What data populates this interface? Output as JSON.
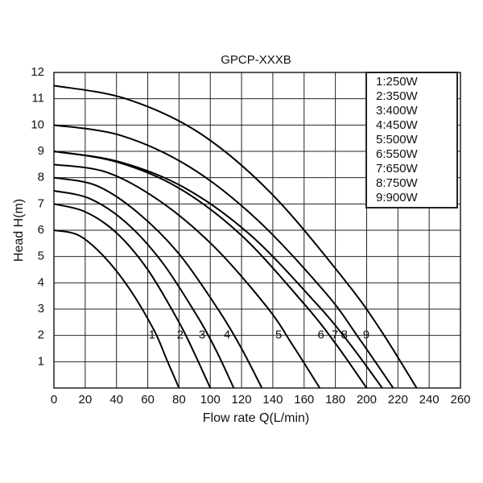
{
  "chart_data": {
    "type": "line",
    "title": "GPCP-XXXB",
    "x_label": "Flow rate Q(L/min)",
    "y_label": "Head H(m)",
    "xlim": [
      0,
      260
    ],
    "xticks": [
      0,
      20,
      40,
      60,
      80,
      100,
      120,
      140,
      160,
      180,
      200,
      220,
      240,
      260
    ],
    "ylim": [
      0,
      12
    ],
    "yticks": [
      1,
      2,
      3,
      4,
      5,
      6,
      7,
      8,
      9,
      10,
      11,
      12
    ],
    "grid": true,
    "legend": "top-right",
    "series": [
      {
        "name": "1:250W",
        "label": "1",
        "color": "#000000",
        "x": [
          0,
          16,
          32,
          48,
          64,
          72,
          80
        ],
        "values": [
          6,
          5.8,
          5,
          3.8,
          2.2,
          1.1,
          0
        ]
      },
      {
        "name": "2:350W",
        "label": "2",
        "color": "#000000",
        "x": [
          0,
          20,
          40,
          60,
          80,
          90,
          100
        ],
        "values": [
          7,
          6.7,
          5.9,
          4.5,
          2.5,
          1.3,
          0
        ]
      },
      {
        "name": "3:400W",
        "label": "3",
        "color": "#000000",
        "x": [
          0,
          23,
          46,
          69,
          92,
          104,
          115
        ],
        "values": [
          7.5,
          7.2,
          6.3,
          4.8,
          2.7,
          1.4,
          0
        ]
      },
      {
        "name": "4:450W",
        "label": "4",
        "color": "#000000",
        "x": [
          0,
          27,
          53,
          80,
          106,
          120,
          133
        ],
        "values": [
          8,
          7.7,
          6.7,
          5.1,
          2.9,
          1.5,
          0
        ]
      },
      {
        "name": "5:500W",
        "label": "5",
        "color": "#000000",
        "x": [
          0,
          34,
          68,
          102,
          136,
          153,
          170
        ],
        "values": [
          8.5,
          8.2,
          7.1,
          5.4,
          3.1,
          1.6,
          0
        ]
      },
      {
        "name": "6:550W",
        "label": "6",
        "color": "#000000",
        "x": [
          0,
          40,
          80,
          120,
          160,
          180,
          200
        ],
        "values": [
          9,
          8.6,
          7.6,
          5.8,
          3.2,
          1.7,
          0
        ]
      },
      {
        "name": "7:650W",
        "label": "7",
        "color": "#000000",
        "x": [
          0,
          42,
          84,
          126,
          168,
          189,
          210
        ],
        "values": [
          9,
          8.6,
          7.6,
          5.8,
          3.2,
          1.7,
          0
        ]
      },
      {
        "name": "8:750W",
        "label": "8",
        "color": "#000000",
        "x": [
          0,
          43,
          87,
          130,
          174,
          195,
          217
        ],
        "values": [
          10,
          9.6,
          8.4,
          6.4,
          3.6,
          1.9,
          0
        ]
      },
      {
        "name": "9:900W",
        "label": "9",
        "color": "#000000",
        "x": [
          0,
          46,
          93,
          139,
          186,
          209,
          232
        ],
        "values": [
          11.5,
          11,
          9.7,
          7.4,
          4.1,
          2.2,
          0
        ]
      }
    ]
  }
}
